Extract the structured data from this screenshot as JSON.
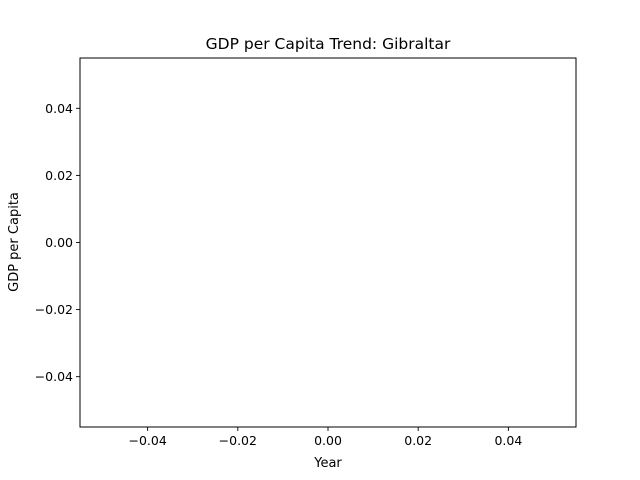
{
  "chart_data": {
    "type": "line",
    "title": "GDP per Capita Trend: Gibraltar",
    "xlabel": "Year",
    "ylabel": "GDP per Capita",
    "xlim": [
      -0.055,
      0.055
    ],
    "ylim": [
      -0.055,
      0.055
    ],
    "x_ticks": [
      -0.04,
      -0.02,
      0.0,
      0.02,
      0.04
    ],
    "x_tick_labels": [
      "−0.04",
      "−0.02",
      "0.00",
      "0.02",
      "0.04"
    ],
    "y_ticks": [
      -0.04,
      -0.02,
      0.0,
      0.02,
      0.04
    ],
    "y_tick_labels": [
      "−0.04",
      "−0.02",
      "0.00",
      "0.02",
      "0.04"
    ],
    "grid": false,
    "series": [
      {
        "x": [],
        "y": []
      }
    ]
  }
}
